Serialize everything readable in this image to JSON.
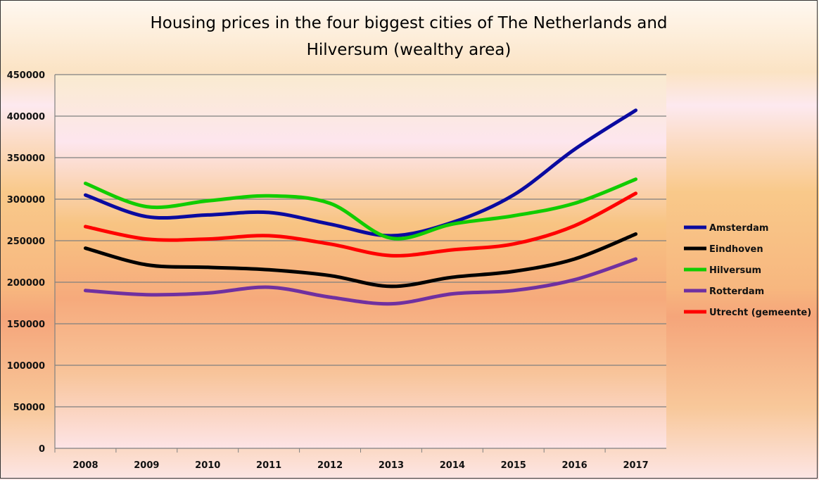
{
  "chart_data": {
    "type": "line",
    "title": "Housing prices  in the four biggest cities of The Netherlands and Hilversum (wealthy area)",
    "title_lines": [
      "Housing prices  in the four biggest cities of The Netherlands and",
      "Hilversum (wealthy area)"
    ],
    "xlabel": "",
    "ylabel": "",
    "ylim": [
      0,
      450000
    ],
    "yticks": [
      0,
      50000,
      100000,
      150000,
      200000,
      250000,
      300000,
      350000,
      400000,
      450000
    ],
    "categories": [
      "2008",
      "2009",
      "2010",
      "2011",
      "2012",
      "2013",
      "2014",
      "2015",
      "2016",
      "2017"
    ],
    "grid": "horizontal",
    "smoothed": true,
    "legend_position": "right",
    "series": [
      {
        "name": "Amsterdam",
        "color": "#0a0aa0",
        "values": [
          305000,
          279000,
          281000,
          284000,
          270000,
          256000,
          272000,
          305000,
          360000,
          407000
        ]
      },
      {
        "name": "Eindhoven",
        "color": "#000000",
        "values": [
          241000,
          221000,
          218000,
          215000,
          208000,
          195000,
          206000,
          213000,
          228000,
          258000
        ]
      },
      {
        "name": "Hilversum",
        "color": "#11cc00",
        "values": [
          319000,
          291000,
          298000,
          304000,
          295000,
          253000,
          270000,
          280000,
          295000,
          324000
        ]
      },
      {
        "name": "Rotterdam",
        "color": "#7030a0",
        "values": [
          190000,
          185000,
          187000,
          194000,
          182000,
          174000,
          186000,
          190000,
          203000,
          228000
        ]
      },
      {
        "name": "Utrecht (gemeente)",
        "color": "#ff0000",
        "values": [
          267000,
          252000,
          252000,
          256000,
          246000,
          232000,
          239000,
          246000,
          268000,
          307000
        ]
      }
    ]
  }
}
